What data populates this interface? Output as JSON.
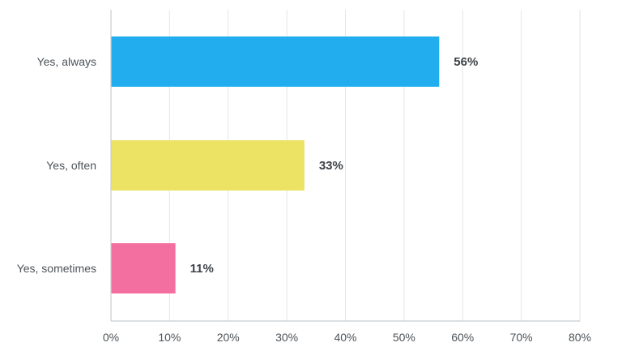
{
  "chart_data": {
    "type": "bar",
    "orientation": "horizontal",
    "categories": [
      "Yes, always",
      "Yes, often",
      "Yes, sometimes"
    ],
    "values": [
      56,
      33,
      11
    ],
    "value_labels": [
      "56%",
      "33%",
      "11%"
    ],
    "colors": [
      "#22adee",
      "#ece264",
      "#f26fa0"
    ],
    "xlim": [
      0,
      80
    ],
    "x_ticks": [
      0,
      10,
      20,
      30,
      40,
      50,
      60,
      70,
      80
    ],
    "x_tick_labels": [
      "0%",
      "10%",
      "20%",
      "30%",
      "40%",
      "50%",
      "60%",
      "70%",
      "80%"
    ],
    "grid": true,
    "title": "",
    "xlabel": "",
    "ylabel": ""
  }
}
